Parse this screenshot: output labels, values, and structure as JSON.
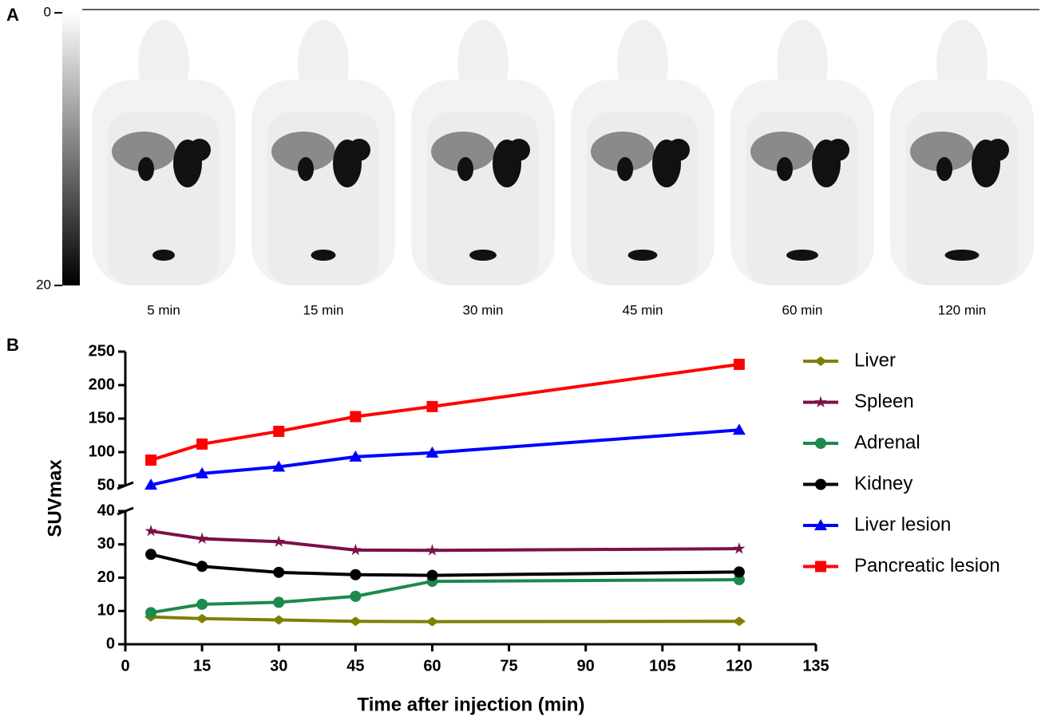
{
  "panel_a": {
    "label": "A",
    "colorbar_ticks": [
      0,
      20
    ],
    "images": [
      "5 min",
      "15 min",
      "30 min",
      "45 min",
      "60 min",
      "120 min"
    ]
  },
  "chart_data": {
    "type": "line",
    "label": "B",
    "x_label": "Time after injection (min)",
    "y_label": "SUVmax",
    "x": [
      5,
      15,
      30,
      45,
      60,
      120
    ],
    "xlim": [
      0,
      135
    ],
    "xticks": [
      0,
      15,
      30,
      45,
      60,
      75,
      90,
      105,
      120,
      135
    ],
    "ylim_lower": [
      0,
      40
    ],
    "yticks_lower": [
      0,
      10,
      20,
      30,
      40
    ],
    "ylim_upper": [
      50,
      250
    ],
    "yticks_upper": [
      50,
      100,
      150,
      200,
      250
    ],
    "legend": "right",
    "series": [
      {
        "name": "Liver",
        "color": "#808000",
        "marker": "diamond",
        "values": [
          8.2,
          7.7,
          7.3,
          6.9,
          6.8,
          6.9
        ]
      },
      {
        "name": "Spleen",
        "color": "#7b1048",
        "marker": "star",
        "values": [
          34,
          31.7,
          30.8,
          28.3,
          28.2,
          28.7
        ]
      },
      {
        "name": "Adrenal",
        "color": "#1b8a4a",
        "marker": "circle",
        "values": [
          9.5,
          12,
          12.6,
          14.4,
          18.9,
          19.4
        ]
      },
      {
        "name": "Kidney",
        "color": "#000000",
        "marker": "circle",
        "values": [
          27,
          23.4,
          21.6,
          20.9,
          20.7,
          21.7
        ]
      },
      {
        "name": "Liver lesion",
        "color": "#0000ff",
        "marker": "triangle",
        "values": [
          51,
          68,
          78,
          93,
          99,
          133
        ]
      },
      {
        "name": "Pancreatic lesion",
        "color": "#ff0000",
        "marker": "square",
        "values": [
          88,
          112,
          131,
          153,
          168,
          231
        ]
      }
    ]
  }
}
